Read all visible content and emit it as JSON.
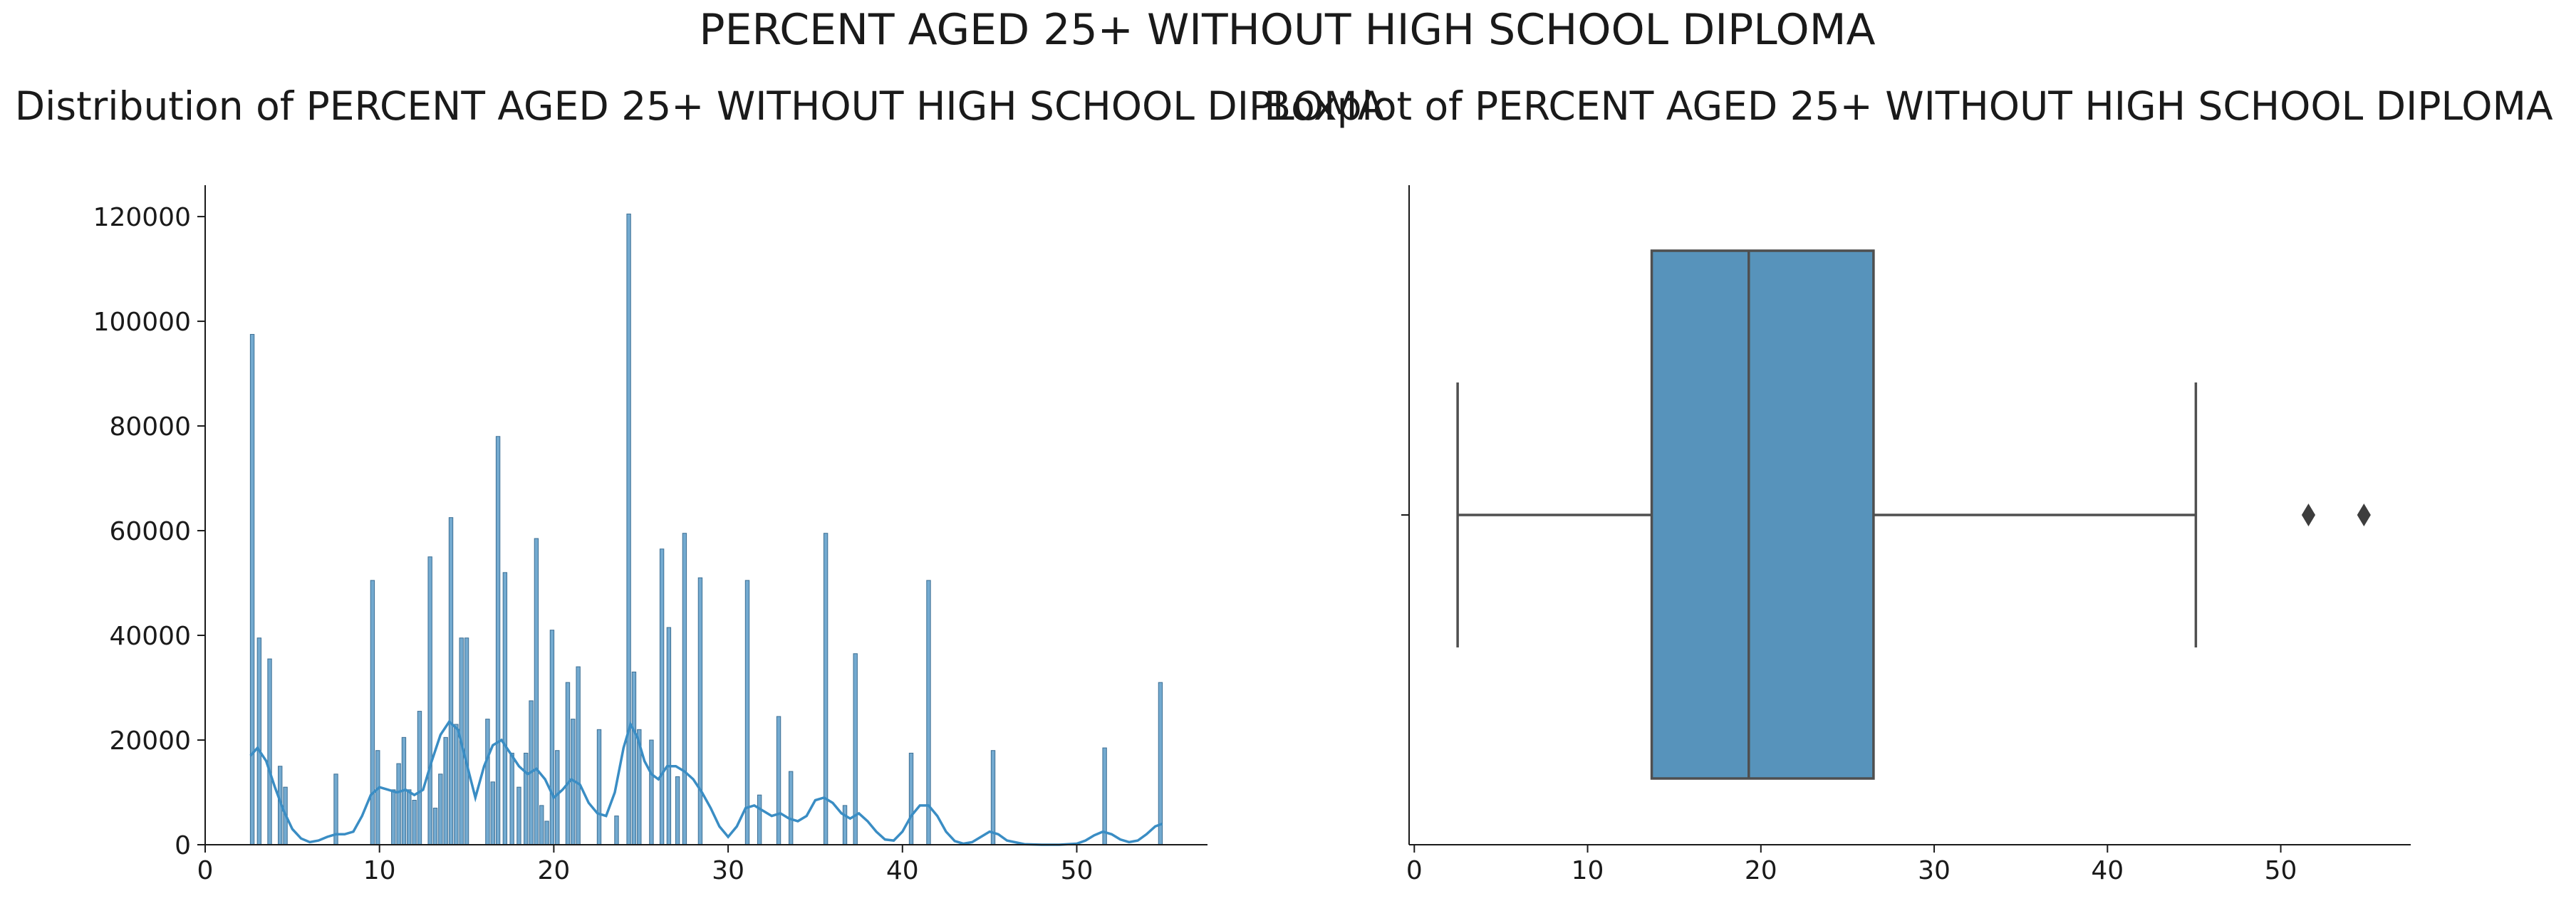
{
  "figure": {
    "suptitle": "PERCENT AGED 25+ WITHOUT HIGH SCHOOL DIPLOMA"
  },
  "colors": {
    "bar": "#5a9bc8",
    "bar_edge": "#3d6f94",
    "kde_line": "#3a8dc4",
    "box_fill": "#5793bb",
    "box_line": "#4f4f4f",
    "axis": "#1a1a1a"
  },
  "chart_data": [
    {
      "type": "histogram",
      "title": "Distribution of PERCENT AGED 25+ WITHOUT HIGH SCHOOL DIPLOMA",
      "xlabel": "",
      "ylabel": "",
      "xlim": [
        0,
        57.5
      ],
      "ylim": [
        0,
        126000
      ],
      "xticks": [
        0,
        10,
        20,
        30,
        40,
        50
      ],
      "yticks": [
        0,
        20000,
        40000,
        60000,
        80000,
        100000,
        120000
      ],
      "bars": [
        {
          "x": 2.7,
          "y": 97500
        },
        {
          "x": 3.1,
          "y": 39500
        },
        {
          "x": 3.7,
          "y": 35500
        },
        {
          "x": 4.3,
          "y": 15000
        },
        {
          "x": 4.6,
          "y": 11000
        },
        {
          "x": 7.5,
          "y": 13500
        },
        {
          "x": 9.6,
          "y": 50500
        },
        {
          "x": 9.9,
          "y": 18000
        },
        {
          "x": 10.8,
          "y": 10500
        },
        {
          "x": 11.1,
          "y": 15500
        },
        {
          "x": 11.4,
          "y": 20500
        },
        {
          "x": 11.7,
          "y": 10500
        },
        {
          "x": 12.0,
          "y": 8500
        },
        {
          "x": 12.3,
          "y": 25500
        },
        {
          "x": 12.9,
          "y": 55000
        },
        {
          "x": 13.2,
          "y": 7000
        },
        {
          "x": 13.5,
          "y": 13500
        },
        {
          "x": 13.8,
          "y": 20500
        },
        {
          "x": 14.1,
          "y": 62500
        },
        {
          "x": 14.4,
          "y": 23000
        },
        {
          "x": 14.7,
          "y": 39500
        },
        {
          "x": 15.0,
          "y": 39500
        },
        {
          "x": 16.2,
          "y": 24000
        },
        {
          "x": 16.5,
          "y": 12000
        },
        {
          "x": 16.8,
          "y": 78000
        },
        {
          "x": 17.2,
          "y": 52000
        },
        {
          "x": 17.6,
          "y": 17500
        },
        {
          "x": 18.0,
          "y": 11000
        },
        {
          "x": 18.4,
          "y": 17500
        },
        {
          "x": 18.7,
          "y": 27500
        },
        {
          "x": 19.0,
          "y": 58500
        },
        {
          "x": 19.3,
          "y": 7500
        },
        {
          "x": 19.6,
          "y": 4500
        },
        {
          "x": 19.9,
          "y": 41000
        },
        {
          "x": 20.2,
          "y": 18000
        },
        {
          "x": 20.8,
          "y": 31000
        },
        {
          "x": 21.1,
          "y": 24000
        },
        {
          "x": 21.4,
          "y": 34000
        },
        {
          "x": 22.6,
          "y": 22000
        },
        {
          "x": 23.6,
          "y": 5500
        },
        {
          "x": 24.3,
          "y": 120500
        },
        {
          "x": 24.6,
          "y": 33000
        },
        {
          "x": 24.9,
          "y": 22000
        },
        {
          "x": 25.6,
          "y": 20000
        },
        {
          "x": 26.2,
          "y": 56500
        },
        {
          "x": 26.6,
          "y": 41500
        },
        {
          "x": 27.1,
          "y": 13000
        },
        {
          "x": 27.5,
          "y": 59500
        },
        {
          "x": 28.4,
          "y": 51000
        },
        {
          "x": 31.1,
          "y": 50500
        },
        {
          "x": 31.8,
          "y": 9500
        },
        {
          "x": 32.9,
          "y": 24500
        },
        {
          "x": 33.6,
          "y": 14000
        },
        {
          "x": 35.6,
          "y": 59500
        },
        {
          "x": 36.7,
          "y": 7500
        },
        {
          "x": 37.3,
          "y": 36500
        },
        {
          "x": 40.5,
          "y": 17500
        },
        {
          "x": 41.5,
          "y": 50500
        },
        {
          "x": 45.2,
          "y": 18000
        },
        {
          "x": 51.6,
          "y": 18500
        },
        {
          "x": 54.8,
          "y": 31000
        }
      ],
      "kde": [
        [
          2.6,
          17000
        ],
        [
          3.0,
          18500
        ],
        [
          3.5,
          16000
        ],
        [
          4.0,
          11000
        ],
        [
          4.5,
          6500
        ],
        [
          5.0,
          3000
        ],
        [
          5.5,
          1200
        ],
        [
          6.0,
          500
        ],
        [
          6.5,
          800
        ],
        [
          7.0,
          1500
        ],
        [
          7.5,
          2000
        ],
        [
          8.0,
          2000
        ],
        [
          8.5,
          2500
        ],
        [
          9.0,
          5500
        ],
        [
          9.5,
          9500
        ],
        [
          10.0,
          11000
        ],
        [
          10.5,
          10500
        ],
        [
          11.0,
          10000
        ],
        [
          11.5,
          10500
        ],
        [
          12.0,
          9500
        ],
        [
          12.5,
          10500
        ],
        [
          13.0,
          16000
        ],
        [
          13.5,
          21000
        ],
        [
          14.0,
          23500
        ],
        [
          14.5,
          22000
        ],
        [
          15.0,
          15500
        ],
        [
          15.5,
          9000
        ],
        [
          16.0,
          15000
        ],
        [
          16.5,
          19000
        ],
        [
          17.0,
          20000
        ],
        [
          17.5,
          17500
        ],
        [
          18.0,
          15000
        ],
        [
          18.5,
          13500
        ],
        [
          19.0,
          14500
        ],
        [
          19.5,
          12500
        ],
        [
          20.0,
          9000
        ],
        [
          20.5,
          10500
        ],
        [
          21.0,
          12500
        ],
        [
          21.5,
          11500
        ],
        [
          22.0,
          8000
        ],
        [
          22.5,
          6000
        ],
        [
          23.0,
          5500
        ],
        [
          23.5,
          10000
        ],
        [
          24.0,
          18500
        ],
        [
          24.4,
          23000
        ],
        [
          24.8,
          20500
        ],
        [
          25.2,
          16000
        ],
        [
          25.6,
          13500
        ],
        [
          26.0,
          12500
        ],
        [
          26.5,
          15000
        ],
        [
          27.0,
          15000
        ],
        [
          27.5,
          14000
        ],
        [
          28.0,
          12500
        ],
        [
          28.5,
          10000
        ],
        [
          29.0,
          7000
        ],
        [
          29.5,
          3500
        ],
        [
          30.0,
          1500
        ],
        [
          30.5,
          3500
        ],
        [
          31.0,
          7000
        ],
        [
          31.5,
          7500
        ],
        [
          32.0,
          6500
        ],
        [
          32.5,
          5500
        ],
        [
          33.0,
          6000
        ],
        [
          33.5,
          5000
        ],
        [
          34.0,
          4500
        ],
        [
          34.5,
          5500
        ],
        [
          35.0,
          8500
        ],
        [
          35.5,
          9000
        ],
        [
          36.0,
          8000
        ],
        [
          36.5,
          6000
        ],
        [
          37.0,
          5000
        ],
        [
          37.5,
          6000
        ],
        [
          38.0,
          4500
        ],
        [
          38.5,
          2500
        ],
        [
          39.0,
          1000
        ],
        [
          39.5,
          800
        ],
        [
          40.0,
          2500
        ],
        [
          40.5,
          5500
        ],
        [
          41.0,
          7500
        ],
        [
          41.5,
          7500
        ],
        [
          42.0,
          5500
        ],
        [
          42.5,
          2500
        ],
        [
          43.0,
          700
        ],
        [
          43.5,
          200
        ],
        [
          44.0,
          500
        ],
        [
          44.5,
          1500
        ],
        [
          45.0,
          2500
        ],
        [
          45.5,
          2000
        ],
        [
          46.0,
          800
        ],
        [
          47.0,
          100
        ],
        [
          48.0,
          0
        ],
        [
          49.0,
          0
        ],
        [
          50.0,
          200
        ],
        [
          50.5,
          800
        ],
        [
          51.0,
          1800
        ],
        [
          51.5,
          2500
        ],
        [
          52.0,
          2000
        ],
        [
          52.5,
          1000
        ],
        [
          53.0,
          500
        ],
        [
          53.5,
          800
        ],
        [
          54.0,
          2000
        ],
        [
          54.5,
          3500
        ],
        [
          54.9,
          4000
        ]
      ]
    },
    {
      "type": "box",
      "title": "Boxplot of PERCENT AGED 25+ WITHOUT HIGH SCHOOL DIPLOMA",
      "xlabel": "",
      "ylabel": "",
      "xlim": [
        -0.3,
        57.5
      ],
      "xticks": [
        0,
        10,
        20,
        30,
        40,
        50
      ],
      "whisker_low": 2.5,
      "q1": 13.7,
      "median": 19.3,
      "q3": 26.5,
      "whisker_high": 45.1,
      "outliers": [
        51.6,
        54.8
      ]
    }
  ]
}
